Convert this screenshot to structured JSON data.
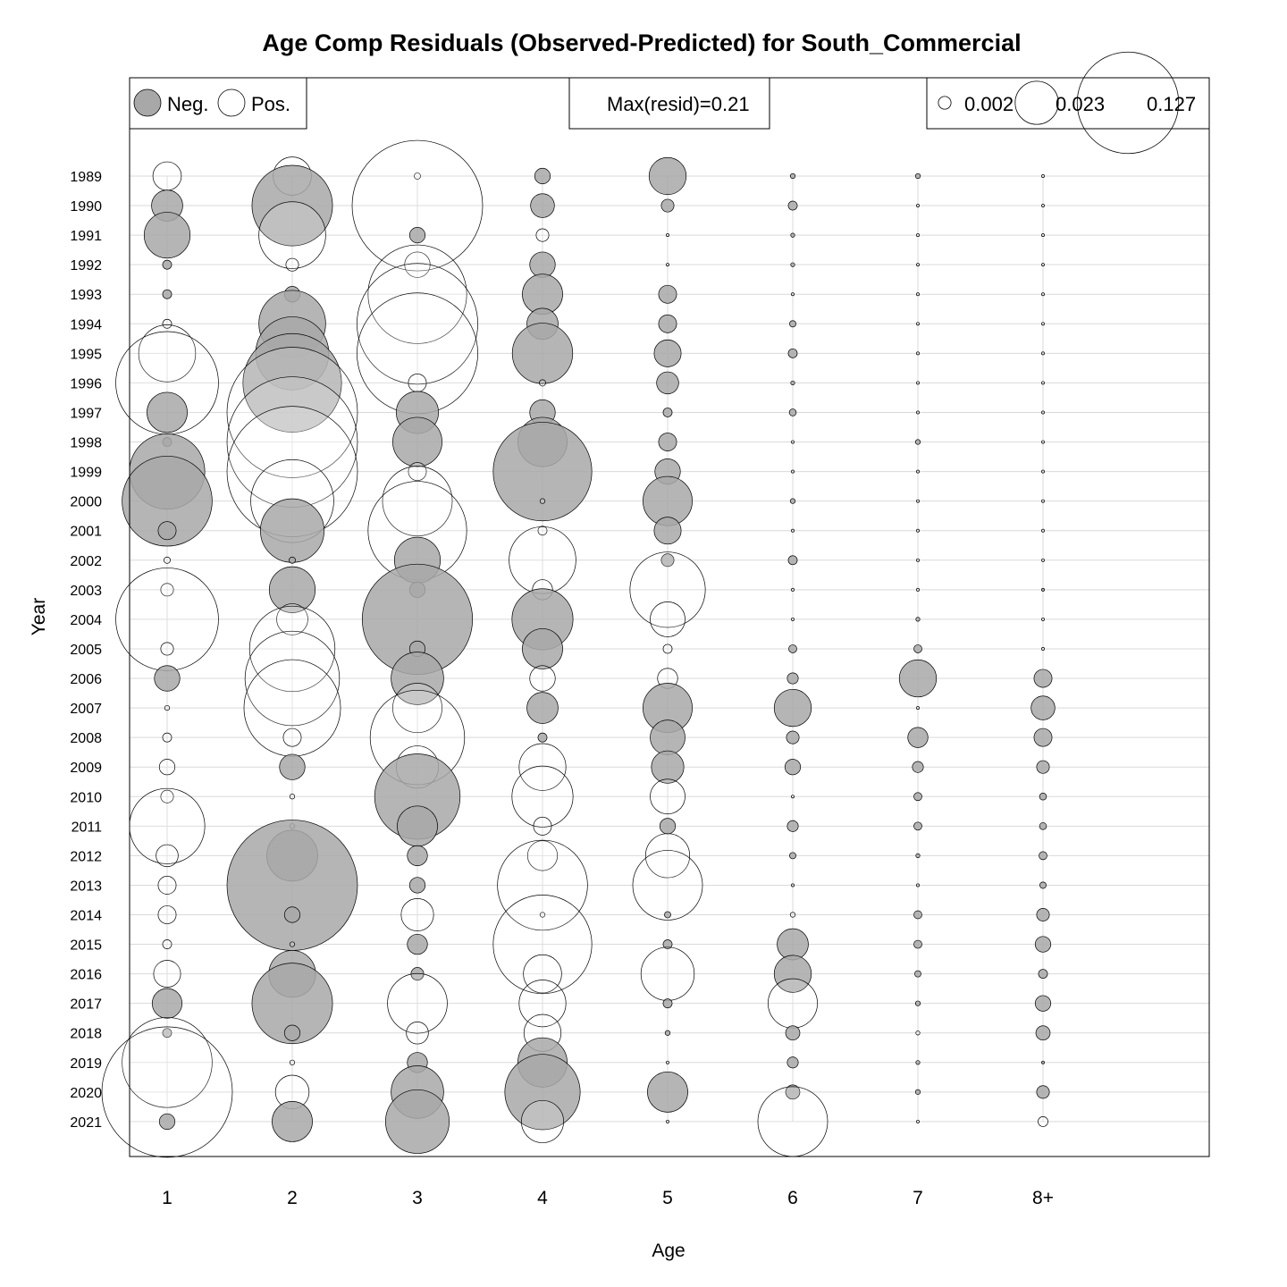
{
  "chart_data": {
    "type": "scatter",
    "title": "Age Comp Residuals (Observed-Predicted) for South_Commercial",
    "xlabel": "Age",
    "ylabel": "Year",
    "categories": [
      "1",
      "2",
      "3",
      "4",
      "5",
      "6",
      "7",
      "8+"
    ],
    "years": [
      1989,
      1990,
      1991,
      1992,
      1993,
      1994,
      1995,
      1996,
      1997,
      1998,
      1999,
      2000,
      2001,
      2002,
      2003,
      2004,
      2005,
      2006,
      2007,
      2008,
      2009,
      2010,
      2011,
      2012,
      2013,
      2014,
      2015,
      2016,
      2017,
      2018,
      2019,
      2020,
      2021
    ],
    "year_labels": [
      "1989",
      "1990",
      "1991",
      "1992",
      "1993",
      "1994",
      "1995",
      "1996",
      "1997",
      "1998",
      "1999",
      "2000",
      "2001",
      "2002",
      "2003",
      "2004",
      "2005",
      "2006",
      "2007",
      "2008",
      "2009",
      "2010",
      "2011",
      "2012",
      "2013",
      "2014",
      "2015",
      "2016",
      "2017",
      "2018",
      "2019",
      "2020",
      "2021"
    ],
    "grid": true,
    "colors": {
      "negative": "#a8a8a8",
      "positive": "#ffffff",
      "grid": "#d9d9d9",
      "outline": "#000000"
    },
    "legend": {
      "neg_label": "Neg.",
      "pos_label": "Pos.",
      "max_label": "Max(resid)=0.21",
      "sizes": [
        0.002,
        0.023,
        0.127
      ],
      "size_labels": [
        "0.002",
        "0.023",
        "0.127"
      ]
    },
    "series": [
      {
        "age": "1",
        "residuals": [
          0.01,
          -0.012,
          -0.026,
          -0.001,
          -0.001,
          0.001,
          0.04,
          0.13,
          -0.02,
          -0.001,
          -0.07,
          -0.1,
          -0.004,
          0.0005,
          0.002,
          0.13,
          0.002,
          -0.008,
          0.0003,
          0.001,
          0.003,
          0.002,
          0.07,
          0.006,
          0.004,
          0.004,
          0.001,
          0.009,
          -0.011,
          -0.001,
          0.1,
          0.21,
          -0.003
        ]
      },
      {
        "age": "2",
        "residuals": [
          0.018,
          -0.08,
          0.055,
          0.002,
          -0.003,
          -0.055,
          -0.066,
          -0.12,
          0.21,
          0.21,
          0.21,
          0.085,
          -0.05,
          -0.0005,
          -0.026,
          0.012,
          0.09,
          0.11,
          0.115,
          0.004,
          -0.008,
          0.0003,
          0.0003,
          -0.032,
          -0.21,
          -0.003,
          0.0003,
          -0.027,
          -0.08,
          -0.003,
          0.0003,
          0.014,
          -0.02
        ]
      },
      {
        "age": "3",
        "residuals": [
          0.0005,
          0.21,
          -0.003,
          0.008,
          0.12,
          0.18,
          0.18,
          0.004,
          -0.022,
          -0.03,
          0.004,
          0.06,
          0.12,
          -0.026,
          -0.003,
          -0.15,
          -0.003,
          -0.034,
          0.03,
          0.11,
          0.022,
          -0.09,
          -0.02,
          -0.005,
          -0.003,
          0.013,
          -0.005,
          -0.002,
          0.044,
          0.006,
          -0.005,
          -0.034,
          -0.05
        ]
      },
      {
        "age": "4",
        "residuals": [
          -0.003,
          -0.007,
          0.002,
          -0.008,
          -0.02,
          -0.012,
          -0.045,
          0.0005,
          -0.008,
          -0.03,
          -0.12,
          0.0003,
          0.001,
          0.055,
          0.005,
          -0.046,
          -0.02,
          0.008,
          -0.012,
          -0.001,
          0.027,
          0.046,
          0.004,
          0.011,
          0.1,
          0.0003,
          0.12,
          0.018,
          0.027,
          0.017,
          -0.03,
          -0.07,
          0.022
        ]
      },
      {
        "age": "5",
        "residuals": [
          -0.017,
          -0.002,
          0.0001,
          0.0001,
          -0.004,
          -0.004,
          -0.009,
          -0.006,
          -0.001,
          -0.004,
          -0.008,
          -0.03,
          -0.009,
          -0.002,
          0.07,
          0.015,
          0.001,
          0.005,
          -0.03,
          -0.015,
          -0.013,
          0.015,
          -0.003,
          0.024,
          0.06,
          -0.0005,
          -0.001,
          0.035,
          -0.001,
          -0.0003,
          0.0001,
          -0.02,
          0.0001
        ]
      },
      {
        "age": "6",
        "residuals": [
          -0.0003,
          -0.001,
          -0.0002,
          -0.0002,
          0.0001,
          -0.0005,
          -0.001,
          -0.0002,
          -0.0006,
          0.0001,
          0.0001,
          -0.0003,
          0.0001,
          -0.001,
          0.0001,
          0.0001,
          -0.0008,
          -0.0015,
          -0.017,
          -0.002,
          -0.003,
          0.0001,
          -0.0015,
          -0.0005,
          0.0001,
          0.0003,
          -0.012,
          -0.017,
          0.03,
          -0.0025,
          -0.0015,
          -0.0025,
          0.06
        ]
      },
      {
        "age": "7",
        "residuals": [
          -0.0003,
          0.0001,
          0.0001,
          0.0001,
          0.0001,
          0.0001,
          0.0001,
          0.0001,
          0.0001,
          -0.0003,
          0.0001,
          0.0001,
          0.0001,
          0.0001,
          0.0001,
          -0.0002,
          -0.0008,
          -0.017,
          0.0001,
          -0.005,
          -0.0015,
          -0.0008,
          -0.0008,
          -0.0002,
          0.0001,
          -0.0008,
          -0.0008,
          -0.0005,
          -0.0003,
          0.0002,
          -0.0002,
          -0.0003,
          0.0001
        ]
      },
      {
        "age": "8+",
        "residuals": [
          0.0001,
          0.0001,
          0.0001,
          0.0001,
          0.0001,
          0.0001,
          0.0001,
          0.0001,
          0.0001,
          0.0001,
          0.0001,
          0.0001,
          0.0001,
          0.0001,
          -0.0001,
          0.0001,
          0.0001,
          -0.004,
          -0.007,
          -0.004,
          -0.002,
          -0.0006,
          -0.0006,
          -0.0008,
          -0.0005,
          -0.002,
          -0.003,
          -0.001,
          -0.003,
          -0.0025,
          -0.0001,
          -0.002,
          0.0012
        ]
      }
    ]
  }
}
